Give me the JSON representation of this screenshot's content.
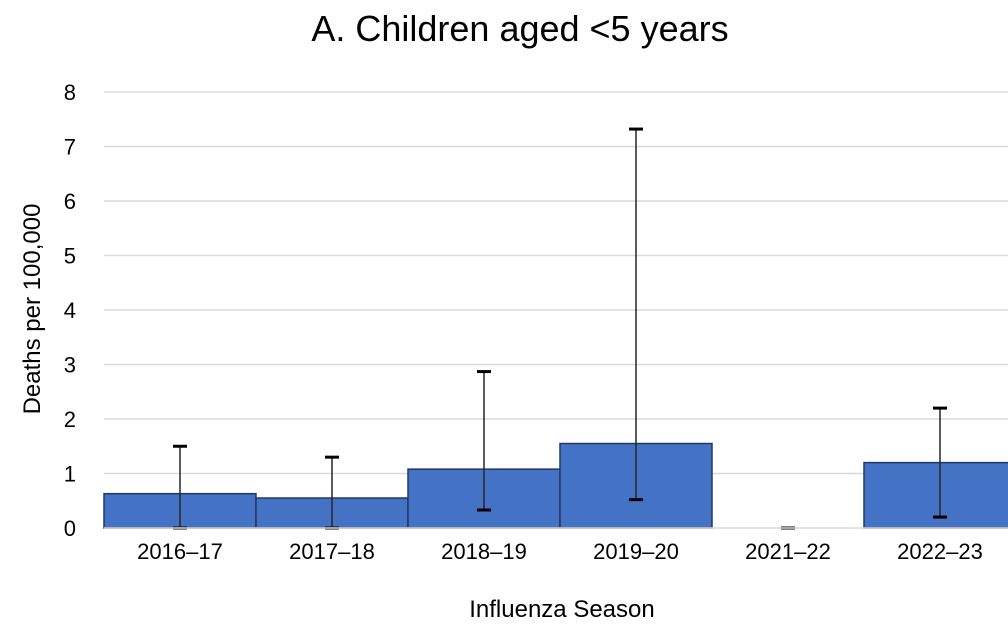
{
  "chart_data": {
    "type": "bar",
    "title": "A. Children aged <5 years",
    "xlabel": "Influenza Season",
    "ylabel": "Deaths per 100,000",
    "categories": [
      "2016–17",
      "2017–18",
      "2018–19",
      "2019–20",
      "2021–22",
      "2022–23"
    ],
    "values": [
      0.63,
      0.55,
      1.08,
      1.55,
      0,
      1.2
    ],
    "error_low": [
      0,
      0,
      0.33,
      0.52,
      0,
      0.2
    ],
    "error_high": [
      1.5,
      1.3,
      2.87,
      7.32,
      0,
      2.2
    ],
    "ylim": [
      0,
      8
    ],
    "yticks": [
      "0",
      "1",
      "2",
      "3",
      "4",
      "5",
      "6",
      "7",
      "8"
    ],
    "grid": true,
    "bar_color": "#4472C4",
    "bar_edge_color": "#1F3864"
  }
}
